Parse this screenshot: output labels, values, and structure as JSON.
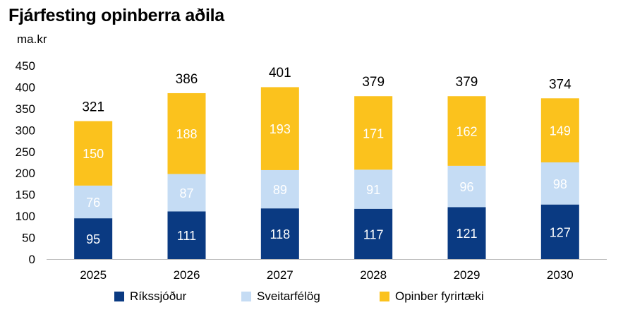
{
  "chart_data": {
    "type": "bar",
    "stacked": true,
    "title": "Fjárfesting opinberra aðila",
    "ylabel": "ma.kr",
    "xlabel": "",
    "ylim": [
      0,
      450
    ],
    "yticks": [
      0,
      50,
      100,
      150,
      200,
      250,
      300,
      350,
      400,
      450
    ],
    "categories": [
      "2025",
      "2026",
      "2027",
      "2028",
      "2029",
      "2030"
    ],
    "series": [
      {
        "name": "Ríkssjóður",
        "color": "#0a3a82",
        "label_color": "#ffffff",
        "values": [
          95,
          111,
          118,
          117,
          121,
          127
        ]
      },
      {
        "name": "Sveitarfélög",
        "color": "#c5dcf4",
        "label_color": "#ffffff",
        "values": [
          76,
          87,
          89,
          91,
          96,
          98
        ]
      },
      {
        "name": "Opinber fyrirtæki",
        "color": "#fbc21d",
        "label_color": "#ffffff",
        "values": [
          150,
          188,
          193,
          171,
          162,
          149
        ]
      }
    ],
    "totals": [
      321,
      386,
      401,
      379,
      379,
      374
    ],
    "grid": false,
    "legend_position": "bottom"
  }
}
